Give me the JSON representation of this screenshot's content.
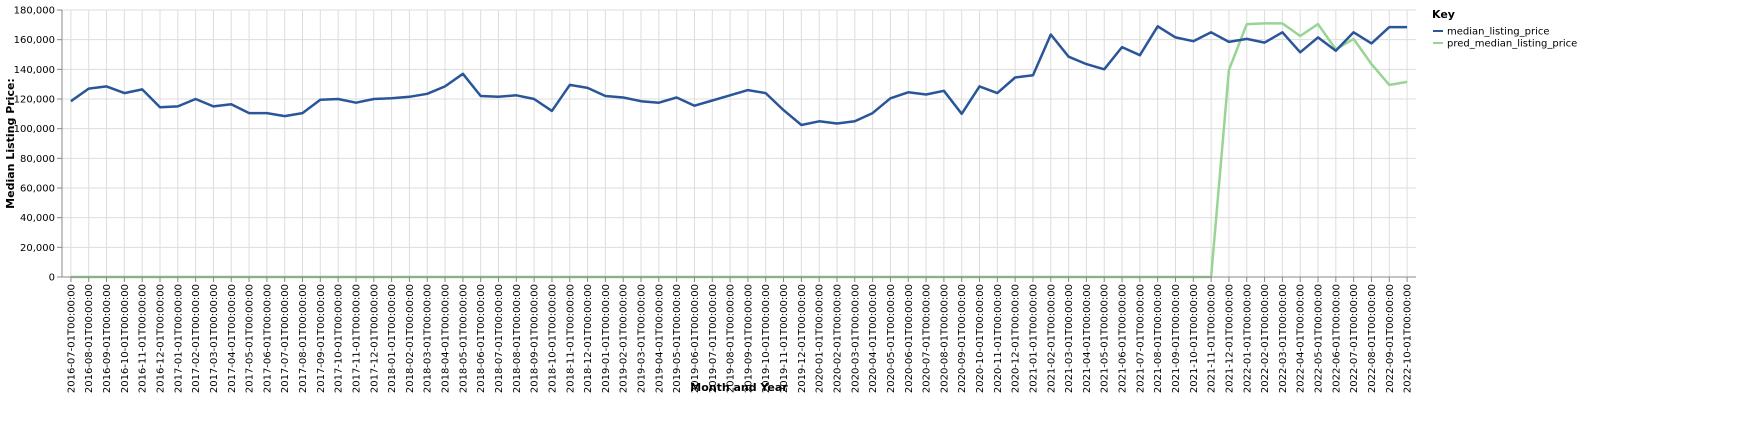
{
  "chart_data": {
    "type": "line",
    "xlabel": "Month and Year",
    "ylabel": "Median Listing Price:",
    "ylim": [
      0,
      180000
    ],
    "y_ticks": [
      0,
      20000,
      40000,
      60000,
      80000,
      100000,
      120000,
      140000,
      160000,
      180000
    ],
    "y_tick_labels": [
      "0",
      "20,000",
      "40,000",
      "60,000",
      "80,000",
      "100,000",
      "120,000",
      "140,000",
      "160,000",
      "180,000"
    ],
    "grid": true,
    "legend": {
      "title": "Key",
      "position": "top-right"
    },
    "x": [
      "2016-07-01T00:00:00",
      "2016-08-01T00:00:00",
      "2016-09-01T00:00:00",
      "2016-10-01T00:00:00",
      "2016-11-01T00:00:00",
      "2016-12-01T00:00:00",
      "2017-01-01T00:00:00",
      "2017-02-01T00:00:00",
      "2017-03-01T00:00:00",
      "2017-04-01T00:00:00",
      "2017-05-01T00:00:00",
      "2017-06-01T00:00:00",
      "2017-07-01T00:00:00",
      "2017-08-01T00:00:00",
      "2017-09-01T00:00:00",
      "2017-10-01T00:00:00",
      "2017-11-01T00:00:00",
      "2017-12-01T00:00:00",
      "2018-01-01T00:00:00",
      "2018-02-01T00:00:00",
      "2018-03-01T00:00:00",
      "2018-04-01T00:00:00",
      "2018-05-01T00:00:00",
      "2018-06-01T00:00:00",
      "2018-07-01T00:00:00",
      "2018-08-01T00:00:00",
      "2018-09-01T00:00:00",
      "2018-10-01T00:00:00",
      "2018-11-01T00:00:00",
      "2018-12-01T00:00:00",
      "2019-01-01T00:00:00",
      "2019-02-01T00:00:00",
      "2019-03-01T00:00:00",
      "2019-04-01T00:00:00",
      "2019-05-01T00:00:00",
      "2019-06-01T00:00:00",
      "2019-07-01T00:00:00",
      "2019-08-01T00:00:00",
      "2019-09-01T00:00:00",
      "2019-10-01T00:00:00",
      "2019-11-01T00:00:00",
      "2019-12-01T00:00:00",
      "2020-01-01T00:00:00",
      "2020-02-01T00:00:00",
      "2020-03-01T00:00:00",
      "2020-04-01T00:00:00",
      "2020-05-01T00:00:00",
      "2020-06-01T00:00:00",
      "2020-07-01T00:00:00",
      "2020-08-01T00:00:00",
      "2020-09-01T00:00:00",
      "2020-10-01T00:00:00",
      "2020-11-01T00:00:00",
      "2020-12-01T00:00:00",
      "2021-01-01T00:00:00",
      "2021-02-01T00:00:00",
      "2021-03-01T00:00:00",
      "2021-04-01T00:00:00",
      "2021-05-01T00:00:00",
      "2021-06-01T00:00:00",
      "2021-07-01T00:00:00",
      "2021-08-01T00:00:00",
      "2021-09-01T00:00:00",
      "2021-10-01T00:00:00",
      "2021-11-01T00:00:00",
      "2021-12-01T00:00:00",
      "2022-01-01T00:00:00",
      "2022-02-01T00:00:00",
      "2022-03-01T00:00:00",
      "2022-04-01T00:00:00",
      "2022-05-01T00:00:00",
      "2022-06-01T00:00:00",
      "2022-07-01T00:00:00",
      "2022-08-01T00:00:00",
      "2022-09-01T00:00:00",
      "2022-10-01T00:00:00"
    ],
    "series": [
      {
        "name": "median_listing_price",
        "color": "#2a5599",
        "values": [
          118500,
          127000,
          128500,
          124000,
          126500,
          114500,
          115000,
          120000,
          115000,
          116500,
          110500,
          110500,
          108500,
          110500,
          119500,
          120000,
          117500,
          120000,
          120500,
          121500,
          123500,
          128500,
          137000,
          122000,
          121500,
          122500,
          120000,
          112000,
          129500,
          127500,
          122000,
          121000,
          118500,
          117500,
          121000,
          115500,
          119000,
          122500,
          126000,
          124000,
          112500,
          102500,
          105000,
          103500,
          105000,
          110500,
          120500,
          124500,
          123000,
          125500,
          110000,
          128500,
          124000,
          134500,
          136000,
          163500,
          148500,
          143500,
          140000,
          155000,
          149500,
          169000,
          161500,
          159000,
          165000,
          158500,
          160500,
          158000,
          165000,
          151500,
          161500,
          152500,
          165000,
          157500,
          168500,
          168500
        ]
      },
      {
        "name": "pred_median_listing_price",
        "color": "#98d594",
        "values": [
          0,
          0,
          0,
          0,
          0,
          0,
          0,
          0,
          0,
          0,
          0,
          0,
          0,
          0,
          0,
          0,
          0,
          0,
          0,
          0,
          0,
          0,
          0,
          0,
          0,
          0,
          0,
          0,
          0,
          0,
          0,
          0,
          0,
          0,
          0,
          0,
          0,
          0,
          0,
          0,
          0,
          0,
          0,
          0,
          0,
          0,
          0,
          0,
          0,
          0,
          0,
          0,
          0,
          0,
          0,
          0,
          0,
          0,
          0,
          0,
          0,
          0,
          0,
          0,
          0,
          139500,
          170500,
          171000,
          171000,
          162500,
          170500,
          153500,
          160500,
          143500,
          129500,
          131500
        ]
      }
    ]
  }
}
